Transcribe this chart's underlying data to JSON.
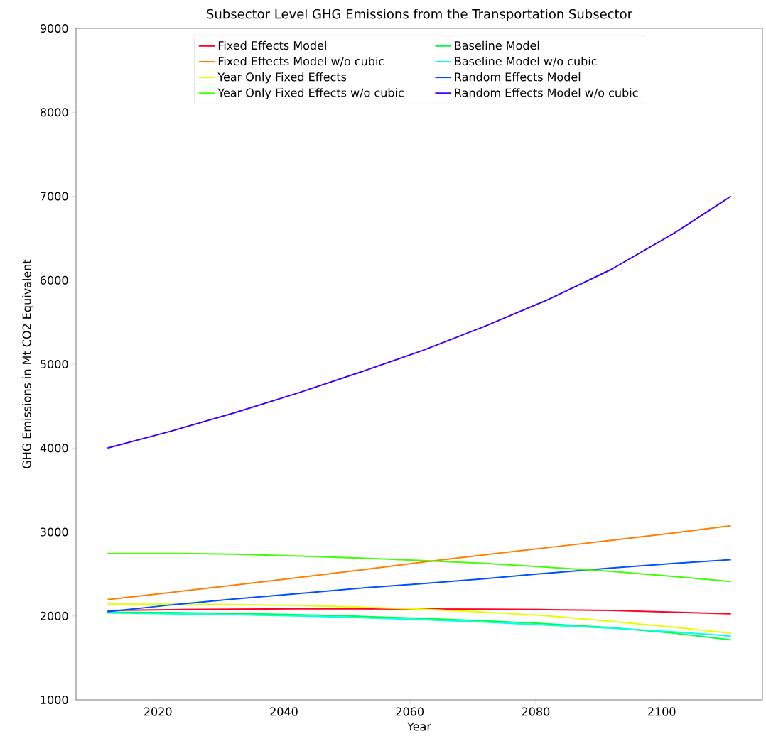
{
  "chart_data": {
    "type": "line",
    "title": "Subsector Level GHG Emissions from the Transportation Subsector",
    "xlabel": "Year",
    "ylabel": "GHG Emissions in Mt CO2 Equivalent",
    "x": [
      2012,
      2022,
      2032,
      2042,
      2052,
      2062,
      2072,
      2082,
      2092,
      2102,
      2111
    ],
    "xlim": [
      2007,
      2116
    ],
    "ylim": [
      1000,
      9000
    ],
    "xticks": [
      2020,
      2040,
      2060,
      2080,
      2100
    ],
    "yticks": [
      1000,
      2000,
      3000,
      4000,
      5000,
      6000,
      7000,
      8000,
      9000
    ],
    "legend": "top",
    "series": [
      {
        "name": "Fixed Effects Model",
        "color": "#ff0029",
        "values": [
          2065,
          2075,
          2080,
          2085,
          2085,
          2083,
          2080,
          2075,
          2065,
          2045,
          2025
        ]
      },
      {
        "name": "Fixed Effects Model w/o cubic",
        "color": "#ff7f00",
        "values": [
          2195,
          2280,
          2365,
          2455,
          2545,
          2640,
          2730,
          2815,
          2900,
          2990,
          3075
        ]
      },
      {
        "name": "Year Only Fixed Effects",
        "color": "#e5ff00",
        "values": [
          2140,
          2140,
          2135,
          2125,
          2105,
          2080,
          2045,
          2000,
          1935,
          1865,
          1795
        ]
      },
      {
        "name": "Year Only Fixed Effects w/o cubic",
        "color": "#40ff00",
        "values": [
          2745,
          2745,
          2735,
          2715,
          2690,
          2660,
          2625,
          2580,
          2530,
          2470,
          2410
        ]
      },
      {
        "name": "Baseline Model",
        "color": "#00ff40",
        "values": [
          2045,
          2040,
          2030,
          2015,
          1995,
          1970,
          1940,
          1905,
          1860,
          1795,
          1715
        ]
      },
      {
        "name": "Baseline Model w/o cubic",
        "color": "#00ffef",
        "values": [
          2035,
          2025,
          2015,
          2000,
          1980,
          1955,
          1925,
          1890,
          1855,
          1810,
          1760
        ]
      },
      {
        "name": "Random Effects Model",
        "color": "#0050ff",
        "values": [
          2050,
          2130,
          2200,
          2265,
          2330,
          2385,
          2445,
          2510,
          2570,
          2625,
          2670
        ]
      },
      {
        "name": "Random Effects Model w/o cubic",
        "color": "#4000ff",
        "values": [
          4000,
          4200,
          4417,
          4650,
          4900,
          5162,
          5453,
          5770,
          6129,
          6562,
          7000
        ]
      }
    ]
  }
}
